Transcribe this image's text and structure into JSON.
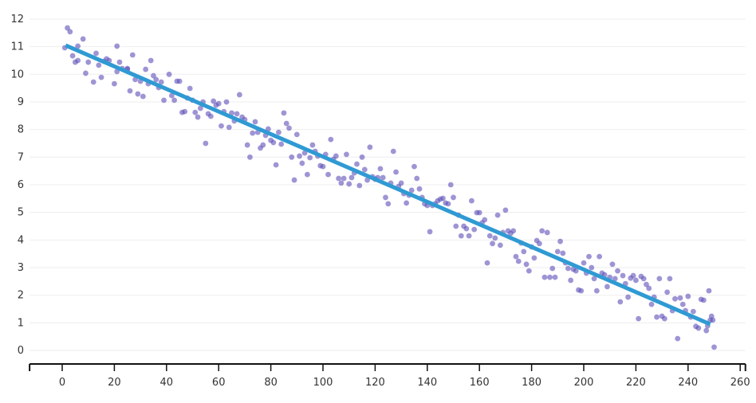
{
  "chart_data": {
    "type": "scatter",
    "title": "",
    "xlabel": "",
    "ylabel": "",
    "xlim": [
      -12.5,
      262
    ],
    "ylim": [
      -0.5,
      12.5
    ],
    "x_ticks": [
      0,
      20,
      40,
      60,
      80,
      100,
      120,
      140,
      160,
      180,
      200,
      220,
      240,
      260
    ],
    "y_ticks": [
      0,
      1,
      2,
      3,
      4,
      5,
      6,
      7,
      8,
      9,
      10,
      11,
      12
    ],
    "grid": {
      "horizontal": true,
      "vertical": false
    },
    "colors": {
      "points": "#5b4fb8",
      "trendline": "#2f9ad3",
      "grid": "#eeeeee",
      "axis": "#111111"
    },
    "trendline": {
      "x": [
        1.3,
        248.5
      ],
      "y": [
        11.05,
        0.95
      ]
    },
    "points": [
      [
        1,
        10.96
      ],
      [
        2,
        11.68
      ],
      [
        3,
        11.54
      ],
      [
        4,
        10.67
      ],
      [
        5,
        10.44
      ],
      [
        6,
        11.02
      ],
      [
        6,
        10.5
      ],
      [
        8,
        11.28
      ],
      [
        9,
        10.04
      ],
      [
        10,
        10.44
      ],
      [
        12,
        9.72
      ],
      [
        13,
        10.76
      ],
      [
        14,
        10.33
      ],
      [
        15,
        9.89
      ],
      [
        16,
        10.47
      ],
      [
        17,
        10.56
      ],
      [
        18,
        10.5
      ],
      [
        20,
        9.66
      ],
      [
        21,
        10.1
      ],
      [
        21,
        11.02
      ],
      [
        22,
        10.44
      ],
      [
        23,
        10.21
      ],
      [
        25,
        10.21
      ],
      [
        25,
        10.18
      ],
      [
        26,
        9.4
      ],
      [
        27,
        10.7
      ],
      [
        28,
        9.81
      ],
      [
        29,
        9.29
      ],
      [
        30,
        9.75
      ],
      [
        31,
        9.2
      ],
      [
        32,
        10.18
      ],
      [
        33,
        9.66
      ],
      [
        34,
        10.5
      ],
      [
        35,
        9.95
      ],
      [
        36,
        9.81
      ],
      [
        37,
        9.52
      ],
      [
        38,
        9.72
      ],
      [
        39,
        9.06
      ],
      [
        41,
        10.0
      ],
      [
        42,
        9.23
      ],
      [
        43,
        9.06
      ],
      [
        44,
        9.75
      ],
      [
        45,
        9.75
      ],
      [
        46,
        8.62
      ],
      [
        47,
        8.65
      ],
      [
        48,
        9.14
      ],
      [
        49,
        9.49
      ],
      [
        50,
        9.06
      ],
      [
        51,
        8.62
      ],
      [
        52,
        8.45
      ],
      [
        53,
        8.77
      ],
      [
        54,
        9.0
      ],
      [
        55,
        7.5
      ],
      [
        56,
        8.57
      ],
      [
        57,
        8.48
      ],
      [
        58,
        9.03
      ],
      [
        59,
        8.88
      ],
      [
        60,
        8.94
      ],
      [
        61,
        8.13
      ],
      [
        62,
        8.65
      ],
      [
        63,
        9.0
      ],
      [
        64,
        8.08
      ],
      [
        65,
        8.6
      ],
      [
        66,
        8.31
      ],
      [
        67,
        8.57
      ],
      [
        68,
        9.26
      ],
      [
        69,
        8.45
      ],
      [
        70,
        8.36
      ],
      [
        71,
        7.44
      ],
      [
        72,
        7.0
      ],
      [
        73,
        7.87
      ],
      [
        74,
        8.28
      ],
      [
        75,
        7.9
      ],
      [
        76,
        7.33
      ],
      [
        77,
        7.44
      ],
      [
        78,
        7.79
      ],
      [
        79,
        8.02
      ],
      [
        80,
        7.61
      ],
      [
        81,
        7.53
      ],
      [
        82,
        6.72
      ],
      [
        83,
        7.9
      ],
      [
        84,
        7.47
      ],
      [
        85,
        8.6
      ],
      [
        86,
        8.22
      ],
      [
        87,
        8.05
      ],
      [
        88,
        7.0
      ],
      [
        89,
        6.17
      ],
      [
        90,
        7.82
      ],
      [
        91,
        7.04
      ],
      [
        92,
        6.78
      ],
      [
        93,
        7.15
      ],
      [
        94,
        6.37
      ],
      [
        95,
        6.98
      ],
      [
        96,
        7.44
      ],
      [
        97,
        7.21
      ],
      [
        98,
        7.04
      ],
      [
        99,
        6.69
      ],
      [
        100,
        6.66
      ],
      [
        101,
        7.1
      ],
      [
        102,
        6.37
      ],
      [
        103,
        7.64
      ],
      [
        104,
        6.92
      ],
      [
        105,
        7.04
      ],
      [
        106,
        6.23
      ],
      [
        107,
        6.06
      ],
      [
        108,
        6.23
      ],
      [
        109,
        7.1
      ],
      [
        110,
        6.03
      ],
      [
        111,
        6.26
      ],
      [
        112,
        6.43
      ],
      [
        113,
        6.75
      ],
      [
        114,
        5.97
      ],
      [
        115,
        7.0
      ],
      [
        116,
        6.55
      ],
      [
        117,
        6.17
      ],
      [
        118,
        7.36
      ],
      [
        119,
        6.29
      ],
      [
        120,
        6.2
      ],
      [
        121,
        6.26
      ],
      [
        122,
        6.58
      ],
      [
        123,
        6.26
      ],
      [
        124,
        5.54
      ],
      [
        125,
        5.31
      ],
      [
        126,
        6.06
      ],
      [
        127,
        7.21
      ],
      [
        128,
        6.46
      ],
      [
        129,
        5.94
      ],
      [
        130,
        6.06
      ],
      [
        131,
        5.68
      ],
      [
        132,
        5.34
      ],
      [
        133,
        5.62
      ],
      [
        134,
        5.8
      ],
      [
        135,
        6.66
      ],
      [
        136,
        6.23
      ],
      [
        137,
        5.85
      ],
      [
        138,
        5.54
      ],
      [
        139,
        5.31
      ],
      [
        140,
        5.25
      ],
      [
        141,
        4.3
      ],
      [
        142,
        5.25
      ],
      [
        143,
        5.31
      ],
      [
        144,
        5.42
      ],
      [
        145,
        5.48
      ],
      [
        146,
        5.51
      ],
      [
        147,
        5.34
      ],
      [
        148,
        5.31
      ],
      [
        149,
        6.0
      ],
      [
        150,
        5.54
      ],
      [
        151,
        4.5
      ],
      [
        152,
        4.9
      ],
      [
        153,
        4.15
      ],
      [
        154,
        4.5
      ],
      [
        155,
        4.41
      ],
      [
        156,
        4.15
      ],
      [
        157,
        5.42
      ],
      [
        158,
        4.38
      ],
      [
        159,
        4.99
      ],
      [
        160,
        4.99
      ],
      [
        161,
        4.62
      ],
      [
        162,
        4.73
      ],
      [
        163,
        3.17
      ],
      [
        164,
        4.15
      ],
      [
        165,
        3.87
      ],
      [
        166,
        4.07
      ],
      [
        167,
        4.9
      ],
      [
        168,
        3.81
      ],
      [
        169,
        4.27
      ],
      [
        170,
        5.08
      ],
      [
        171,
        4.33
      ],
      [
        172,
        4.24
      ],
      [
        173,
        4.33
      ],
      [
        174,
        3.4
      ],
      [
        175,
        3.23
      ],
      [
        176,
        3.89
      ],
      [
        177,
        3.58
      ],
      [
        178,
        3.12
      ],
      [
        179,
        2.88
      ],
      [
        180,
        3.75
      ],
      [
        181,
        3.35
      ],
      [
        182,
        3.98
      ],
      [
        183,
        3.87
      ],
      [
        184,
        4.33
      ],
      [
        185,
        2.65
      ],
      [
        186,
        4.27
      ],
      [
        187,
        2.65
      ],
      [
        188,
        2.97
      ],
      [
        189,
        2.65
      ],
      [
        190,
        3.58
      ],
      [
        191,
        3.95
      ],
      [
        192,
        3.52
      ],
      [
        193,
        3.17
      ],
      [
        194,
        2.97
      ],
      [
        195,
        2.54
      ],
      [
        196,
        2.94
      ],
      [
        197,
        2.88
      ],
      [
        198,
        2.19
      ],
      [
        199,
        2.16
      ],
      [
        200,
        3.17
      ],
      [
        201,
        2.8
      ],
      [
        202,
        3.4
      ],
      [
        203,
        3.0
      ],
      [
        204,
        2.6
      ],
      [
        205,
        2.16
      ],
      [
        206,
        3.4
      ],
      [
        207,
        2.8
      ],
      [
        208,
        2.74
      ],
      [
        209,
        2.31
      ],
      [
        210,
        2.65
      ],
      [
        211,
        3.12
      ],
      [
        212,
        2.6
      ],
      [
        213,
        2.88
      ],
      [
        214,
        1.76
      ],
      [
        215,
        2.71
      ],
      [
        216,
        2.42
      ],
      [
        217,
        1.93
      ],
      [
        218,
        2.62
      ],
      [
        219,
        2.71
      ],
      [
        220,
        2.54
      ],
      [
        221,
        1.15
      ],
      [
        222,
        2.68
      ],
      [
        223,
        2.6
      ],
      [
        224,
        2.39
      ],
      [
        225,
        2.25
      ],
      [
        226,
        1.67
      ],
      [
        227,
        1.93
      ],
      [
        228,
        1.21
      ],
      [
        229,
        2.6
      ],
      [
        230,
        1.24
      ],
      [
        231,
        1.15
      ],
      [
        232,
        2.11
      ],
      [
        233,
        2.6
      ],
      [
        234,
        1.44
      ],
      [
        235,
        1.87
      ],
      [
        236,
        0.43
      ],
      [
        237,
        1.9
      ],
      [
        238,
        1.67
      ],
      [
        239,
        1.44
      ],
      [
        240,
        1.96
      ],
      [
        241,
        1.21
      ],
      [
        242,
        1.41
      ],
      [
        243,
        0.87
      ],
      [
        244,
        0.81
      ],
      [
        245,
        1.85
      ],
      [
        246,
        1.82
      ],
      [
        247,
        0.72
      ],
      [
        247.5,
        0.89
      ],
      [
        248,
        2.16
      ],
      [
        248.5,
        1.1
      ],
      [
        249,
        1.24
      ],
      [
        249.5,
        1.1
      ],
      [
        250,
        0.12
      ]
    ]
  }
}
